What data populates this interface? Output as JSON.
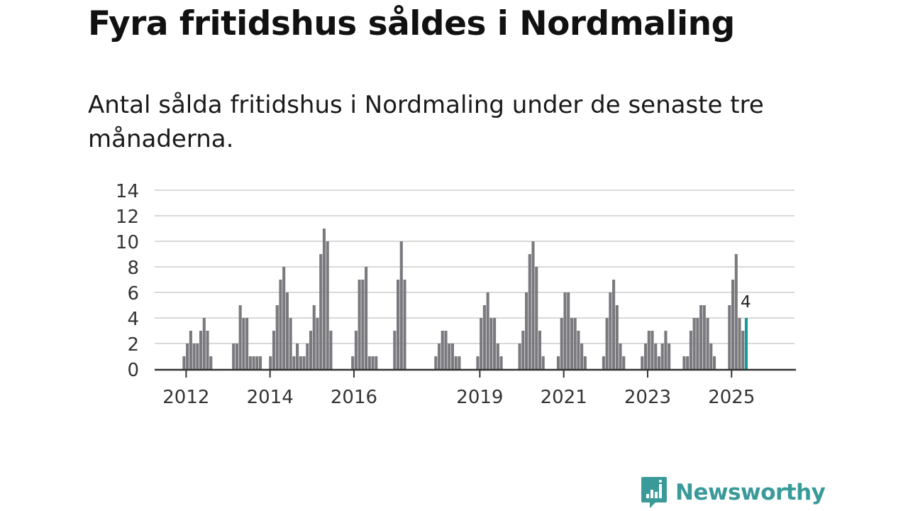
{
  "title": "Fyra fritidshus såldes i Nordmaling",
  "subtitle": "Antal sålda fritidshus i Nordmaling under de senaste tre månaderna.",
  "brand": {
    "name": "Newsworthy"
  },
  "colors": {
    "bar": "#7a797e",
    "highlight": "#1a9a9a",
    "grid": "#d9d9d9",
    "axis": "#333333",
    "brand": "#3a9a9a"
  },
  "chart_data": {
    "type": "bar",
    "title": "Fyra fritidshus såldes i Nordmaling",
    "xlabel": "",
    "ylabel": "",
    "ylim": [
      0,
      14
    ],
    "yticks": [
      0,
      2,
      4,
      6,
      8,
      10,
      12,
      14
    ],
    "xlim": [
      2011.5,
      2026.75
    ],
    "xticks": [
      {
        "label": "2012",
        "x": 2012.25
      },
      {
        "label": "2014",
        "x": 2014.25
      },
      {
        "label": "2016",
        "x": 2016.25
      },
      {
        "label": "2019",
        "x": 2019.25
      },
      {
        "label": "2021",
        "x": 2021.25
      },
      {
        "label": "2023",
        "x": 2023.25
      },
      {
        "label": "2025",
        "x": 2025.25
      }
    ],
    "grid": true,
    "annotation": {
      "text": "4",
      "target": "last"
    },
    "x": [
      2012.2,
      2012.28,
      2012.36,
      2012.44,
      2012.52,
      2012.6,
      2012.68,
      2012.76,
      2012.84,
      2013.38,
      2013.46,
      2013.54,
      2013.62,
      2013.7,
      2013.78,
      2013.86,
      2013.94,
      2014.02,
      2014.26,
      2014.34,
      2014.42,
      2014.5,
      2014.58,
      2014.66,
      2014.74,
      2014.82,
      2014.9,
      2014.98,
      2015.06,
      2015.14,
      2015.22,
      2015.3,
      2015.38,
      2015.46,
      2015.54,
      2015.62,
      2015.7,
      2016.22,
      2016.3,
      2016.38,
      2016.46,
      2016.54,
      2016.62,
      2016.7,
      2016.78,
      2017.22,
      2017.3,
      2017.38,
      2017.46,
      2018.2,
      2018.28,
      2018.36,
      2018.44,
      2018.52,
      2018.6,
      2018.68,
      2018.76,
      2019.2,
      2019.28,
      2019.36,
      2019.44,
      2019.52,
      2019.6,
      2019.68,
      2019.76,
      2020.2,
      2020.28,
      2020.36,
      2020.44,
      2020.52,
      2020.6,
      2020.68,
      2020.76,
      2021.12,
      2021.2,
      2021.28,
      2021.36,
      2021.44,
      2021.52,
      2021.6,
      2021.68,
      2021.76,
      2022.2,
      2022.28,
      2022.36,
      2022.44,
      2022.52,
      2022.6,
      2022.68,
      2023.12,
      2023.2,
      2023.28,
      2023.36,
      2023.44,
      2023.52,
      2023.6,
      2023.68,
      2023.76,
      2024.12,
      2024.2,
      2024.28,
      2024.36,
      2024.44,
      2024.52,
      2024.6,
      2024.68,
      2024.76,
      2024.84,
      2025.2,
      2025.28,
      2025.36,
      2025.44,
      2025.52,
      2025.6
    ],
    "values": [
      1,
      2,
      3,
      2,
      2,
      3,
      4,
      3,
      1,
      2,
      2,
      5,
      4,
      4,
      1,
      1,
      1,
      1,
      1,
      3,
      5,
      7,
      8,
      6,
      4,
      1,
      2,
      1,
      1,
      2,
      3,
      5,
      4,
      9,
      11,
      10,
      3,
      1,
      3,
      7,
      7,
      8,
      1,
      1,
      1,
      3,
      7,
      10,
      7,
      1,
      2,
      3,
      3,
      2,
      2,
      1,
      1,
      1,
      4,
      5,
      6,
      4,
      4,
      2,
      1,
      2,
      3,
      6,
      9,
      10,
      8,
      3,
      1,
      1,
      4,
      6,
      6,
      4,
      4,
      3,
      2,
      1,
      1,
      4,
      6,
      7,
      5,
      2,
      1,
      1,
      2,
      3,
      3,
      2,
      1,
      2,
      3,
      2,
      1,
      1,
      3,
      4,
      4,
      5,
      5,
      4,
      2,
      1,
      5,
      7,
      9,
      4,
      3,
      4
    ]
  }
}
